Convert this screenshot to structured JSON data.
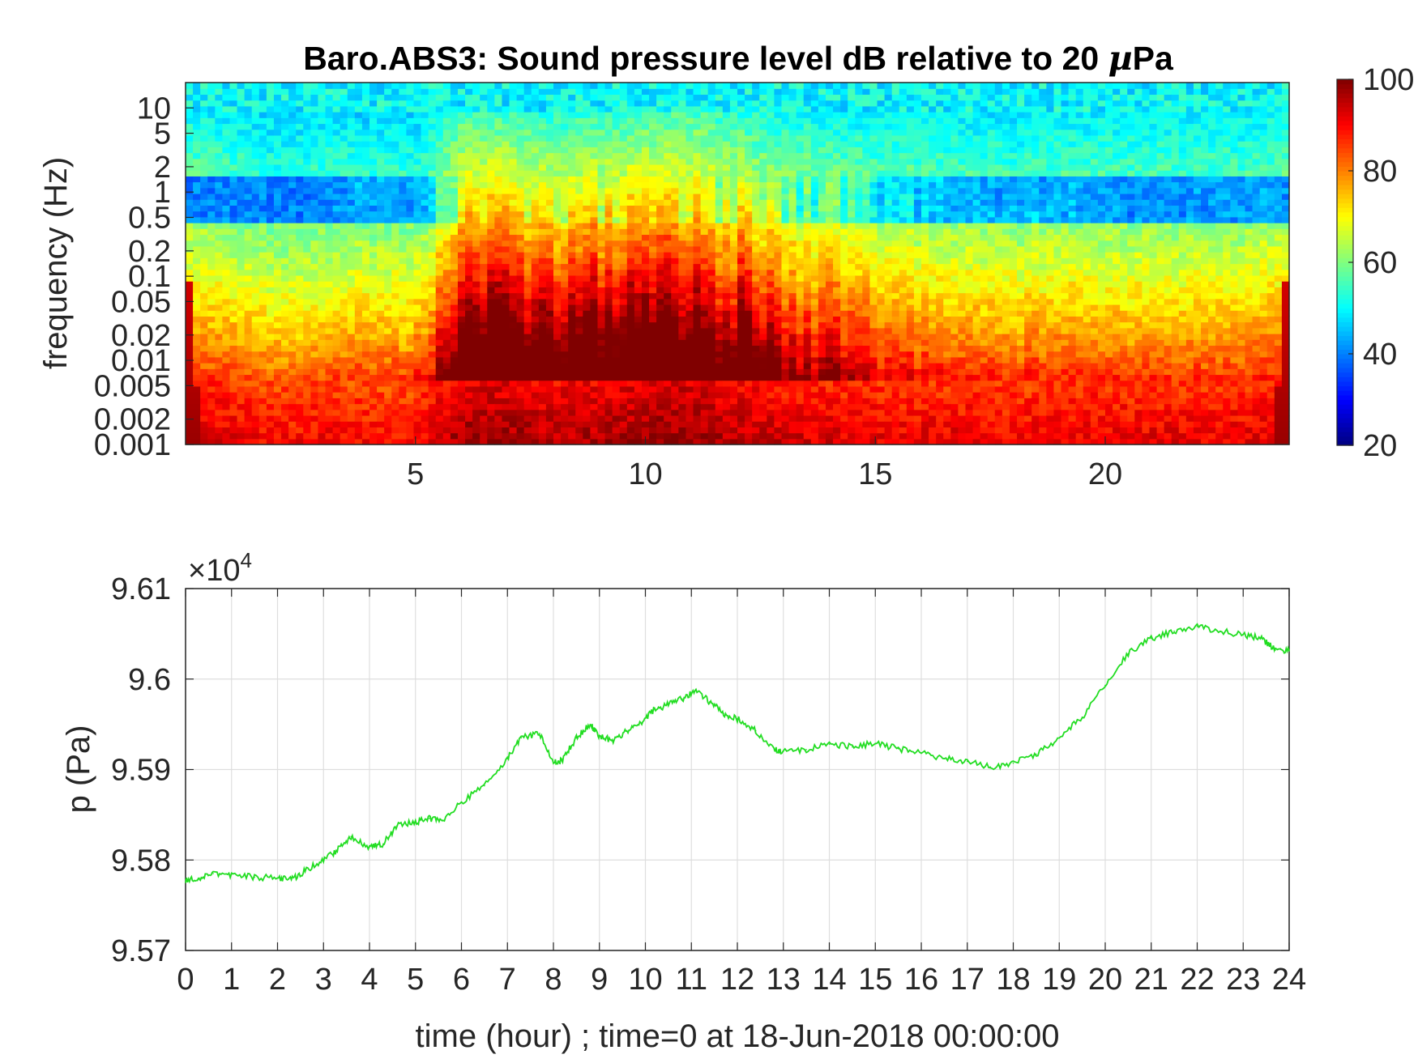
{
  "chart_data": [
    {
      "type": "heatmap",
      "title_prefix": "Baro.ABS3: Sound pressure level dB relative to 20 ",
      "title_unit": "µ",
      "title_suffix": "Pa",
      "ylabel": "frequency (Hz)",
      "xlabel": "",
      "xlim": [
        0,
        24
      ],
      "ylim": [
        0.001,
        20
      ],
      "yscale": "log",
      "x_ticks": [
        5,
        10,
        15,
        20
      ],
      "x_tick_labels": [
        "5",
        "10",
        "15",
        "20"
      ],
      "y_ticks": [
        0.001,
        0.002,
        0.005,
        0.01,
        0.02,
        0.05,
        0.1,
        0.2,
        0.5,
        1,
        2,
        5,
        10
      ],
      "y_tick_labels": [
        "0.001",
        "0.002",
        "0.005",
        "0.01",
        "0.02",
        "0.05",
        "0.1",
        "0.2",
        "0.5",
        "1",
        "2",
        "5",
        "10"
      ],
      "colorbar": {
        "limits": [
          20,
          100
        ],
        "ticks": [
          20,
          40,
          60,
          80,
          100
        ],
        "tick_labels": [
          "20",
          "40",
          "60",
          "80",
          "100"
        ],
        "colormap": "jet"
      },
      "time_profile_dB": {
        "hours": [
          0,
          1,
          2,
          3,
          4,
          5,
          5.5,
          6,
          7,
          8,
          9,
          10,
          11,
          12,
          13,
          14,
          15,
          16,
          17,
          18,
          19,
          20,
          21,
          22,
          23,
          24
        ],
        "low_freq_level": [
          88,
          86,
          84,
          85,
          84,
          84,
          88,
          92,
          92,
          90,
          91,
          92,
          93,
          90,
          88,
          87,
          86,
          86,
          86,
          85,
          86,
          86,
          86,
          86,
          86,
          88
        ],
        "high_freq_activity": [
          0.05,
          0.05,
          0.05,
          0.05,
          0.15,
          0.15,
          0.35,
          0.95,
          0.9,
          0.85,
          0.9,
          0.9,
          0.95,
          0.85,
          0.6,
          0.45,
          0.3,
          0.2,
          0.15,
          0.15,
          0.15,
          0.1,
          0.1,
          0.1,
          0.1,
          0.1
        ]
      }
    },
    {
      "type": "line",
      "ylabel": "p (Pa)",
      "xlabel": "time (hour) ; time=0 at 18-Jun-2018 00:00:00",
      "exponent_base": "×10",
      "exponent_power": "4",
      "xlim": [
        0,
        24
      ],
      "ylim": [
        9.57,
        9.61
      ],
      "x_ticks": [
        0,
        1,
        2,
        3,
        4,
        5,
        6,
        7,
        8,
        9,
        10,
        11,
        12,
        13,
        14,
        15,
        16,
        17,
        18,
        19,
        20,
        21,
        22,
        23,
        24
      ],
      "x_tick_labels": [
        "0",
        "1",
        "2",
        "3",
        "4",
        "5",
        "6",
        "7",
        "8",
        "9",
        "10",
        "11",
        "12",
        "13",
        "14",
        "15",
        "16",
        "17",
        "18",
        "19",
        "20",
        "21",
        "22",
        "23",
        "24"
      ],
      "y_ticks": [
        9.57,
        9.58,
        9.59,
        9.6,
        9.61
      ],
      "y_tick_labels": [
        "9.57",
        "9.58",
        "9.59",
        "9.6",
        "9.61"
      ],
      "grid": true,
      "line_color": "#22dd22",
      "series": [
        {
          "x": [
            0,
            0.3,
            0.6,
            1.0,
            1.5,
            2.0,
            2.3,
            2.6,
            3.0,
            3.3,
            3.6,
            4.0,
            4.3,
            4.6,
            5.0,
            5.3,
            5.6,
            6.0,
            6.5,
            7.0,
            7.3,
            7.7,
            8.0,
            8.2,
            8.5,
            8.8,
            9.0,
            9.3,
            9.6,
            9.9,
            10.2,
            10.5,
            10.8,
            11.1,
            11.4,
            11.7,
            12.0,
            12.4,
            12.8,
            13.0,
            13.5,
            14.0,
            14.5,
            15.0,
            15.5,
            16.0,
            16.5,
            17.0,
            17.5,
            18.0,
            18.5,
            19.0,
            19.5,
            20.0,
            20.5,
            21.0,
            21.5,
            22.0,
            22.5,
            23.0,
            23.4,
            23.7,
            24.0
          ],
          "y": [
            9.5778,
            9.578,
            9.5785,
            9.5784,
            9.5781,
            9.578,
            9.5778,
            9.5788,
            9.58,
            9.5811,
            9.5826,
            9.5814,
            9.5818,
            9.5838,
            9.5842,
            9.5846,
            9.5844,
            9.5864,
            9.5882,
            9.5912,
            9.5935,
            9.594,
            9.5908,
            9.5911,
            9.5935,
            9.595,
            9.5937,
            9.5932,
            9.5943,
            9.5952,
            9.5966,
            9.5972,
            9.5978,
            9.5987,
            9.5975,
            9.5962,
            9.5956,
            9.5943,
            9.5922,
            9.592,
            9.5922,
            9.5928,
            9.5925,
            9.5929,
            9.5923,
            9.5918,
            9.5912,
            9.5909,
            9.5903,
            9.5907,
            9.5917,
            9.5935,
            9.5958,
            9.5993,
            9.6028,
            9.6045,
            9.6053,
            9.6058,
            9.6053,
            9.6049,
            9.6045,
            9.6032,
            9.6031
          ]
        }
      ]
    }
  ]
}
